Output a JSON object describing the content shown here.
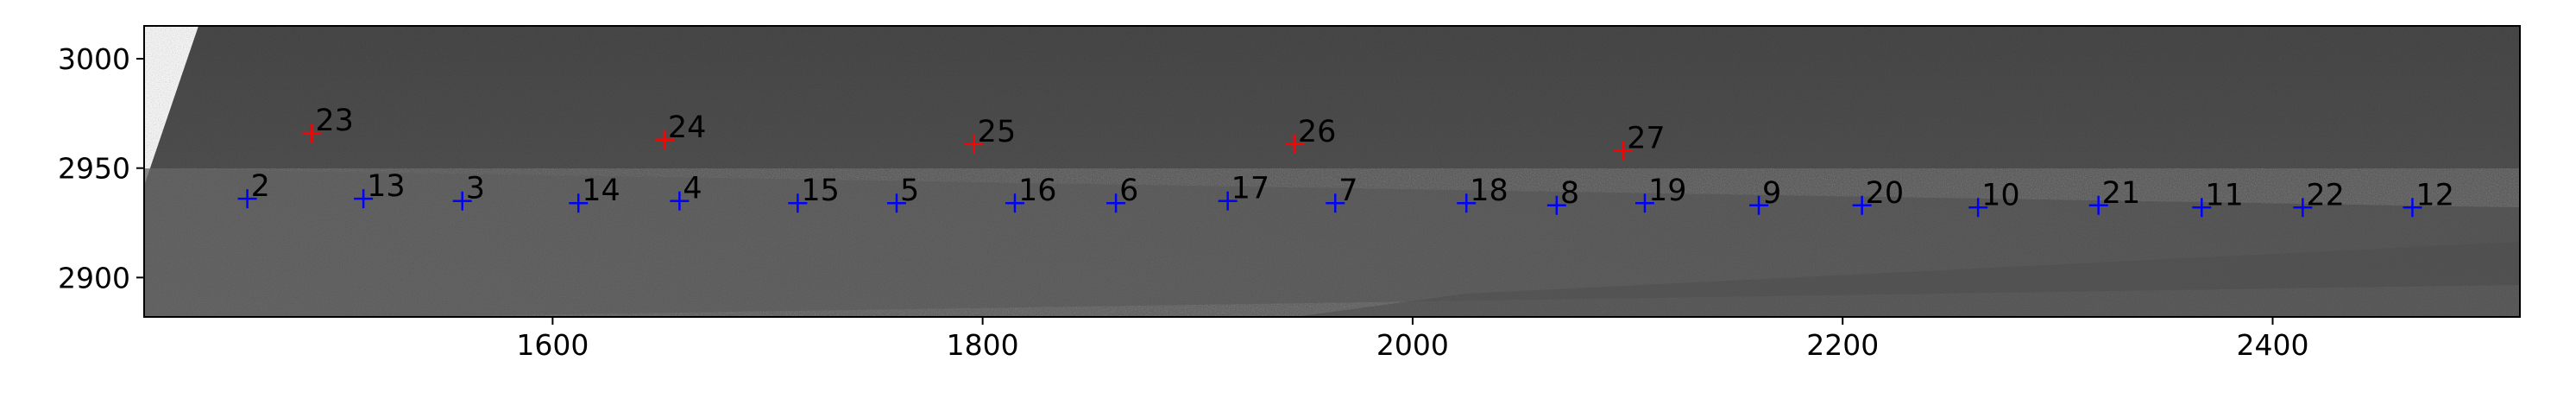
{
  "chart_data": {
    "type": "scatter",
    "title": "",
    "xlabel": "",
    "ylabel": "",
    "xlim": [
      1410,
      2515
    ],
    "ylim": [
      2882,
      3015
    ],
    "xticks": [
      1600,
      1800,
      2000,
      2200,
      2400
    ],
    "yticks": [
      2900,
      2950,
      3000
    ],
    "grid": false,
    "background": "grayscale satellite image",
    "series": [
      {
        "color": "#ff0000",
        "marker": "+",
        "points": [
          {
            "label": "23",
            "x": 1488,
            "y": 2966
          },
          {
            "label": "24",
            "x": 1652,
            "y": 2963
          },
          {
            "label": "25",
            "x": 1796,
            "y": 2961
          },
          {
            "label": "26",
            "x": 1945,
            "y": 2961
          },
          {
            "label": "27",
            "x": 2098,
            "y": 2958
          }
        ]
      },
      {
        "color": "#0000ff",
        "marker": "+",
        "points": [
          {
            "label": "2",
            "x": 1458,
            "y": 2936
          },
          {
            "label": "13",
            "x": 1512,
            "y": 2936
          },
          {
            "label": "3",
            "x": 1558,
            "y": 2935
          },
          {
            "label": "14",
            "x": 1612,
            "y": 2934
          },
          {
            "label": "4",
            "x": 1659,
            "y": 2935
          },
          {
            "label": "15",
            "x": 1714,
            "y": 2934
          },
          {
            "label": "5",
            "x": 1760,
            "y": 2934
          },
          {
            "label": "16",
            "x": 1815,
            "y": 2934
          },
          {
            "label": "6",
            "x": 1862,
            "y": 2934
          },
          {
            "label": "17",
            "x": 1914,
            "y": 2935
          },
          {
            "label": "7",
            "x": 1964,
            "y": 2934
          },
          {
            "label": "18",
            "x": 2025,
            "y": 2934
          },
          {
            "label": "8",
            "x": 2067,
            "y": 2933
          },
          {
            "label": "19",
            "x": 2108,
            "y": 2934
          },
          {
            "label": "9",
            "x": 2161,
            "y": 2933
          },
          {
            "label": "20",
            "x": 2209,
            "y": 2933
          },
          {
            "label": "10",
            "x": 2263,
            "y": 2932
          },
          {
            "label": "21",
            "x": 2319,
            "y": 2933
          },
          {
            "label": "11",
            "x": 2367,
            "y": 2932
          },
          {
            "label": "22",
            "x": 2414,
            "y": 2932
          },
          {
            "label": "12",
            "x": 2465,
            "y": 2932
          }
        ]
      }
    ]
  }
}
